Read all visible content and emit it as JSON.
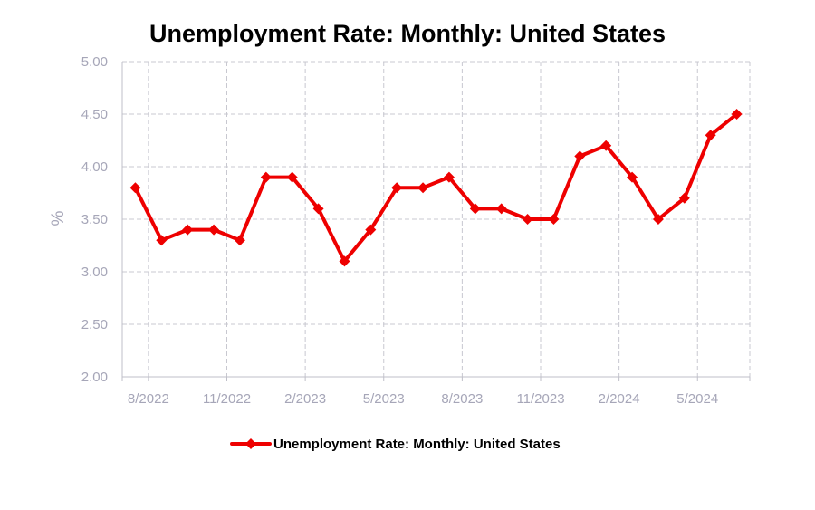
{
  "chart_data": {
    "type": "line",
    "title": "Unemployment Rate: Monthly: United States",
    "ylabel": "%",
    "xlabel": "",
    "ylim": [
      2.0,
      5.0
    ],
    "yticks": [
      "2.00",
      "2.50",
      "3.00",
      "3.50",
      "4.00",
      "4.50",
      "5.00"
    ],
    "xticks": [
      "8/2022",
      "11/2022",
      "2/2023",
      "5/2023",
      "8/2023",
      "11/2023",
      "2/2024",
      "5/2024"
    ],
    "grid": true,
    "legend_position": "bottom",
    "color": "#ee0000",
    "marker": "diamond",
    "x": [
      "2022-08",
      "2022-09",
      "2022-10",
      "2022-11",
      "2022-12",
      "2023-01",
      "2023-02",
      "2023-03",
      "2023-04",
      "2023-05",
      "2023-06",
      "2023-07",
      "2023-08",
      "2023-09",
      "2023-10",
      "2023-11",
      "2023-12",
      "2024-01",
      "2024-02",
      "2024-03",
      "2024-04",
      "2024-05",
      "2024-06",
      "2024-07"
    ],
    "series": [
      {
        "name": "Unemployment Rate: Monthly: United States",
        "values": [
          3.8,
          3.3,
          3.4,
          3.4,
          3.3,
          3.9,
          3.9,
          3.6,
          3.1,
          3.4,
          3.8,
          3.8,
          3.9,
          3.6,
          3.6,
          3.5,
          3.5,
          4.1,
          4.2,
          3.9,
          3.5,
          3.7,
          4.3,
          4.5
        ]
      }
    ]
  }
}
